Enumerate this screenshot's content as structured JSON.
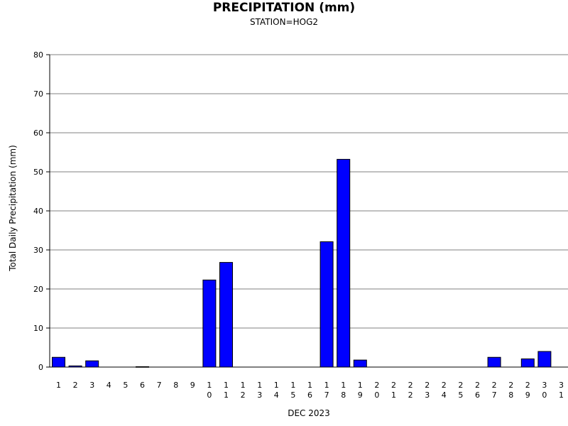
{
  "chart_data": {
    "type": "bar",
    "title": "PRECIPITATION (mm)",
    "subtitle": "STATION=HOG2",
    "xlabel": "DEC 2023",
    "ylabel": "Total Daily Precipitation (mm)",
    "ylim": [
      0,
      80
    ],
    "yticks": [
      0,
      10,
      20,
      30,
      40,
      50,
      60,
      70,
      80
    ],
    "grid": true,
    "categories": [
      "1",
      "2",
      "3",
      "4",
      "5",
      "6",
      "7",
      "8",
      "9",
      "10",
      "11",
      "12",
      "13",
      "14",
      "15",
      "16",
      "17",
      "18",
      "19",
      "20",
      "21",
      "22",
      "23",
      "24",
      "25",
      "26",
      "27",
      "28",
      "29",
      "30",
      "31"
    ],
    "values": [
      2.5,
      0.3,
      1.6,
      0,
      0,
      0.1,
      0,
      0,
      0,
      22.3,
      26.8,
      0,
      0,
      0,
      0,
      0,
      32.1,
      53.2,
      1.8,
      0,
      0,
      0,
      0,
      0,
      0,
      0,
      2.5,
      0,
      2.1,
      4.0,
      0
    ],
    "bar_color": "#0000ff",
    "grid_color": "#808080"
  }
}
